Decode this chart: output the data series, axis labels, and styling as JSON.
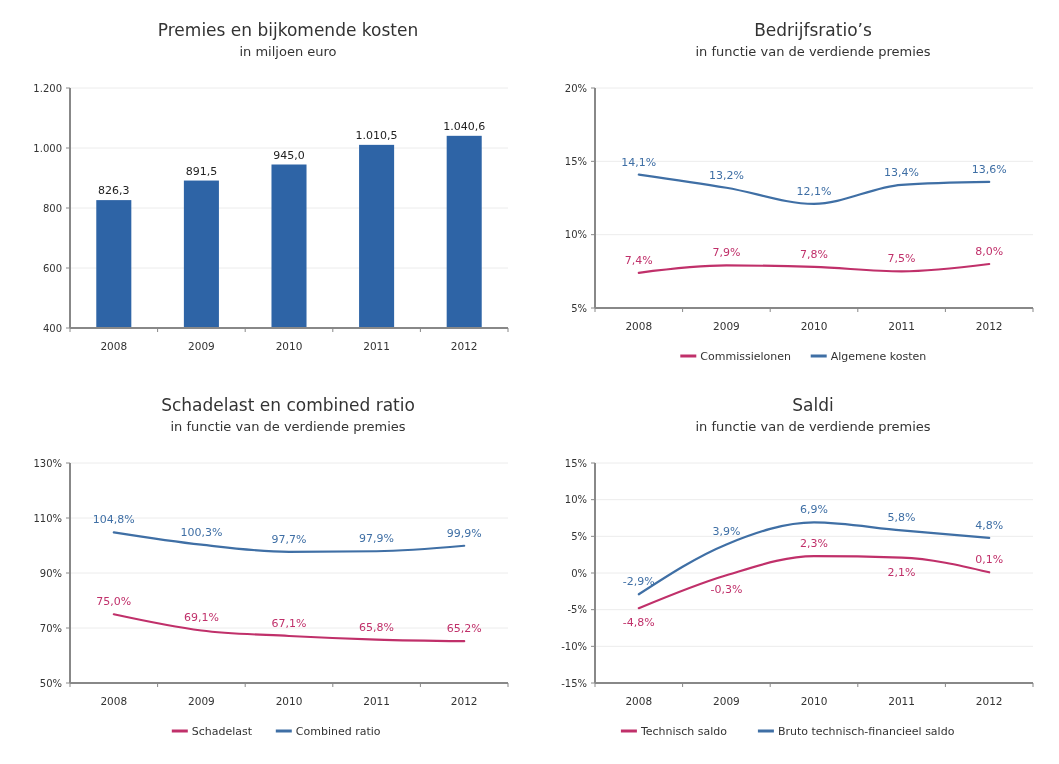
{
  "chart_data": [
    {
      "type": "bar",
      "title": "Premies en bijkomende kosten",
      "subtitle": "in miljoen euro",
      "categories": [
        "2008",
        "2009",
        "2010",
        "2011",
        "2012"
      ],
      "color": "#2e64a6",
      "values": [
        826.3,
        891.5,
        945.0,
        1010.5,
        1040.6
      ],
      "value_labels": [
        "826,3",
        "891,5",
        "945,0",
        "1.010,5",
        "1.040,6"
      ],
      "ylim": [
        400,
        1200
      ],
      "yticks": [
        400,
        600,
        800,
        {
          "value": 1000,
          "label": "1.000"
        },
        {
          "value": 1200,
          "label": "1.200"
        }
      ],
      "grid": "y",
      "legend": false
    },
    {
      "type": "line",
      "title": "Bedrijfsratio’s",
      "subtitle": "in functie van de verdiende premies",
      "categories": [
        "2008",
        "2009",
        "2010",
        "2011",
        "2012"
      ],
      "series": [
        {
          "name": "Commissielonen",
          "color": "#c0306a",
          "values": [
            7.4,
            7.9,
            7.8,
            7.5,
            8.0
          ],
          "value_labels": [
            "7,4%",
            "7,9%",
            "7,8%",
            "7,5%",
            "8,0%"
          ]
        },
        {
          "name": "Algemene kosten",
          "color": "#3f6fa5",
          "values": [
            14.1,
            13.2,
            12.1,
            13.4,
            13.6
          ],
          "value_labels": [
            "14,1%",
            "13,2%",
            "12,1%",
            "13,4%",
            "13,6%"
          ]
        }
      ],
      "ylim": [
        5,
        20
      ],
      "yticks": [
        {
          "value": 5,
          "label": "5%"
        },
        {
          "value": 10,
          "label": "10%"
        },
        {
          "value": 15,
          "label": "15%"
        },
        {
          "value": 20,
          "label": "20%"
        }
      ],
      "grid": "y",
      "legend": "bottom",
      "marker": "none",
      "line_style": "solid"
    },
    {
      "type": "line",
      "title": "Schadelast en combined ratio",
      "subtitle": "in functie van de verdiende premies",
      "categories": [
        "2008",
        "2009",
        "2010",
        "2011",
        "2012"
      ],
      "series": [
        {
          "name": "Schadelast",
          "color": "#c0306a",
          "values": [
            75.0,
            69.1,
            67.1,
            65.8,
            65.2
          ],
          "value_labels": [
            "75,0%",
            "69,1%",
            "67,1%",
            "65,8%",
            "65,2%"
          ]
        },
        {
          "name": "Combined ratio",
          "color": "#3f6fa5",
          "values": [
            104.8,
            100.3,
            97.7,
            97.9,
            99.9
          ],
          "value_labels": [
            "104,8%",
            "100,3%",
            "97,7%",
            "97,9%",
            "99,9%"
          ]
        }
      ],
      "ylim": [
        50,
        130
      ],
      "yticks": [
        {
          "value": 50,
          "label": "50%"
        },
        {
          "value": 70,
          "label": "70%"
        },
        {
          "value": 90,
          "label": "90%"
        },
        {
          "value": 110,
          "label": "110%"
        },
        {
          "value": 130,
          "label": "130%"
        }
      ],
      "grid": "y",
      "legend": "bottom",
      "marker": "none",
      "line_style": "solid"
    },
    {
      "type": "line",
      "title": "Saldi",
      "subtitle": "in functie van de verdiende premies",
      "categories": [
        "2008",
        "2009",
        "2010",
        "2011",
        "2012"
      ],
      "series": [
        {
          "name": "Technisch saldo",
          "color": "#c0306a",
          "values": [
            -4.8,
            -0.3,
            2.3,
            2.1,
            0.1
          ],
          "value_labels": [
            "-4,8%",
            "-0,3%",
            "2,3%",
            "2,1%",
            "0,1%"
          ]
        },
        {
          "name": "Bruto technisch-financieel saldo",
          "color": "#3f6fa5",
          "values": [
            -2.9,
            3.9,
            6.9,
            5.8,
            4.8
          ],
          "value_labels": [
            "-2,9%",
            "3,9%",
            "6,9%",
            "5,8%",
            "4,8%"
          ]
        }
      ],
      "ylim": [
        -15,
        15
      ],
      "yticks": [
        {
          "value": -15,
          "label": "-15%"
        },
        {
          "value": -10,
          "label": "-10%"
        },
        {
          "value": -5,
          "label": "-5%"
        },
        {
          "value": 0,
          "label": "0%"
        },
        {
          "value": 5,
          "label": "5%"
        },
        {
          "value": 10,
          "label": "10%"
        },
        {
          "value": 15,
          "label": "15%"
        }
      ],
      "grid": "y",
      "legend": "bottom",
      "marker": "none",
      "line_style": "solid"
    }
  ]
}
